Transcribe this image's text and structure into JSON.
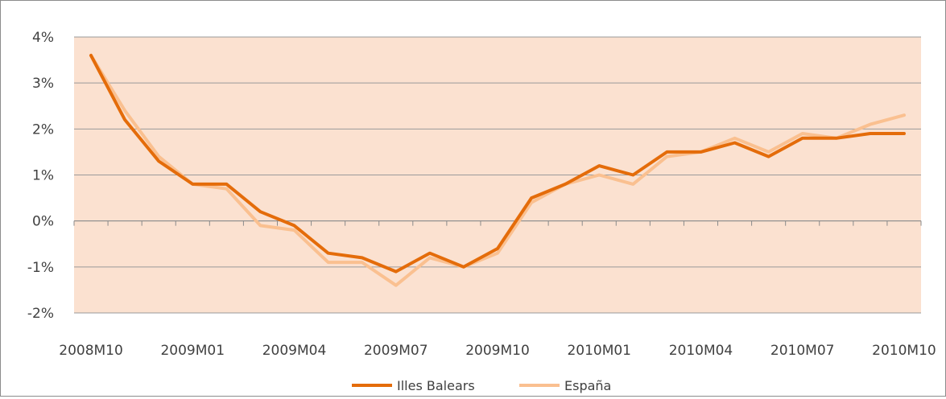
{
  "chart_data": {
    "type": "line",
    "title": "",
    "xlabel": "",
    "ylabel": "",
    "ylim": [
      -2,
      4
    ],
    "y_tick_labels": [
      "4%",
      "3%",
      "2%",
      "1%",
      "0%",
      "-1%",
      "-2%"
    ],
    "y_tick_values": [
      4,
      3,
      2,
      1,
      0,
      -1,
      -2
    ],
    "x_tick_labels": [
      "2008M10",
      "2009M01",
      "2009M04",
      "2009M07",
      "2009M10",
      "2010M01",
      "2010M04",
      "2010M07",
      "2010M10"
    ],
    "x": [
      "2008M10",
      "2008M11",
      "2008M12",
      "2009M01",
      "2009M02",
      "2009M03",
      "2009M04",
      "2009M05",
      "2009M06",
      "2009M07",
      "2009M08",
      "2009M09",
      "2009M10",
      "2009M11",
      "2009M12",
      "2010M01",
      "2010M02",
      "2010M03",
      "2010M04",
      "2010M05",
      "2010M06",
      "2010M07",
      "2010M08",
      "2010M09",
      "2010M10"
    ],
    "grid": true,
    "legend_position": "bottom",
    "plot_background": "#fbe1d0",
    "series": [
      {
        "name": "Illes Balears",
        "color": "#e46c0a",
        "values": [
          3.6,
          2.2,
          1.3,
          0.8,
          0.8,
          0.2,
          -0.1,
          -0.7,
          -0.8,
          -1.1,
          -0.7,
          -1.0,
          -0.6,
          0.5,
          0.8,
          1.2,
          1.0,
          1.5,
          1.5,
          1.7,
          1.4,
          1.8,
          1.8,
          1.9,
          1.9
        ]
      },
      {
        "name": "España",
        "color": "#fac090",
        "values": [
          3.6,
          2.4,
          1.4,
          0.8,
          0.7,
          -0.1,
          -0.2,
          -0.9,
          -0.9,
          -1.4,
          -0.8,
          -1.0,
          -0.7,
          0.4,
          0.8,
          1.0,
          0.8,
          1.4,
          1.5,
          1.8,
          1.5,
          1.9,
          1.8,
          2.1,
          2.3
        ]
      }
    ]
  }
}
